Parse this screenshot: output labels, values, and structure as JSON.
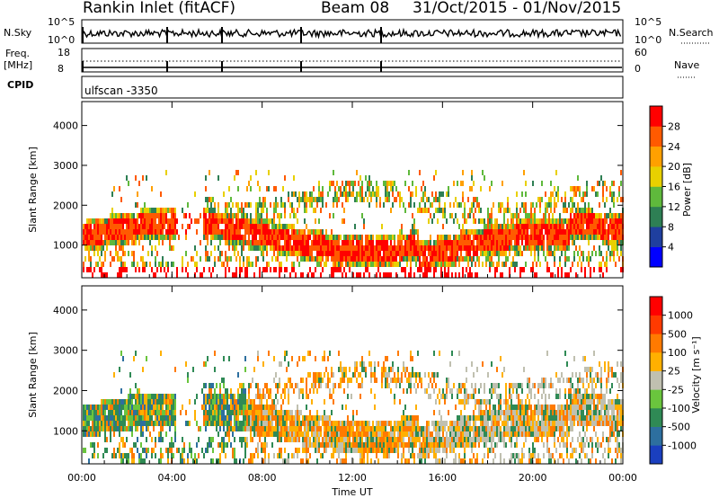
{
  "header": {
    "station": "Rankin Inlet (fitACF)",
    "beam": "Beam 08",
    "date_range": "31/Oct/2015 - 01/Nov/2015"
  },
  "status": {
    "nsky_label": "N.Sky",
    "nsky_ticks": [
      "10^5",
      "10^0"
    ],
    "nsearch_label": "N.Search",
    "nsearch_ticks": [
      "10^5",
      "10^0"
    ],
    "freq_label_1": "Freq.",
    "freq_label_2": "[MHz]",
    "freq_ticks": [
      "18",
      "8"
    ],
    "nave_label": "Nave",
    "nave_ticks": [
      "60",
      "0"
    ],
    "cpid_label": "CPID",
    "cpid_value": "ulfscan -3350"
  },
  "chart_data": [
    {
      "type": "heatmap",
      "panel": "power",
      "ylabel": "Slant Range [km]",
      "ylim": [
        180,
        4600
      ],
      "yticks": [
        "1000",
        "2000",
        "3000",
        "4000"
      ],
      "xlim": [
        "00:00",
        "24:00"
      ],
      "colorbar": {
        "label": "Power [dB]",
        "ticks": [
          "4",
          "8",
          "12",
          "16",
          "20",
          "24",
          "28"
        ],
        "colors": [
          "#0000ff",
          "#1f3f9f",
          "#2e7f54",
          "#5fb93c",
          "#e8d000",
          "#ffa000",
          "#ff5a00",
          "#ff0000"
        ]
      }
    },
    {
      "type": "heatmap",
      "panel": "velocity",
      "ylabel": "Slant Range [km]",
      "ylim": [
        180,
        4600
      ],
      "yticks": [
        "1000",
        "2000",
        "3000",
        "4000"
      ],
      "xlim": [
        "00:00",
        "24:00"
      ],
      "colorbar": {
        "label": "Velocity [m s⁻¹]",
        "ticks": [
          "1000",
          "500",
          "100",
          "25",
          "-25",
          "-100",
          "-500",
          "-1000"
        ],
        "colors": [
          "#1a3fbf",
          "#2d6f9f",
          "#2f8a55",
          "#6ac53d",
          "#c0c0b0",
          "#ffb000",
          "#ff7a00",
          "#ff3a00",
          "#ff0000"
        ]
      }
    }
  ],
  "xaxis": {
    "ticks": [
      "00:00",
      "04:00",
      "08:00",
      "12:00",
      "16:00",
      "20:00",
      "00:00"
    ],
    "label": "Time UT"
  }
}
